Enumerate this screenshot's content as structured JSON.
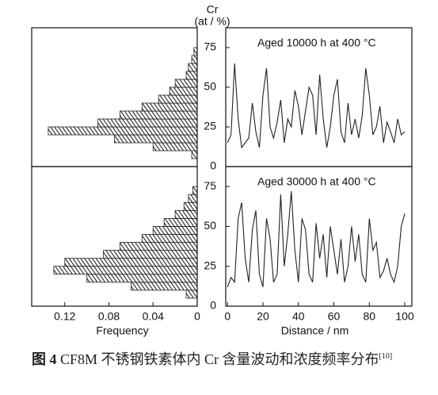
{
  "chart_data": [
    {
      "type": "histogram",
      "orientation": "horizontal",
      "color": "#222",
      "bins": [
        0,
        5,
        10,
        15,
        20,
        25,
        30,
        35,
        40,
        45,
        50,
        55,
        60,
        65,
        70,
        75,
        80
      ],
      "values": [
        0,
        0.005,
        0.04,
        0.075,
        0.135,
        0.09,
        0.07,
        0.05,
        0.035,
        0.025,
        0.02,
        0.01,
        0.008,
        0.005,
        0.003,
        0
      ],
      "xlim": [
        0.15,
        0
      ],
      "ylim": [
        0,
        87.5
      ]
    },
    {
      "type": "line",
      "title": "Aged 10000 h  at 400 °C",
      "ylabel": "Cr",
      "yunit": "(at / %)",
      "color": "#222",
      "x": [
        0,
        2,
        4,
        6,
        8,
        10,
        12,
        14,
        16,
        18,
        20,
        22,
        24,
        26,
        28,
        30,
        32,
        34,
        36,
        38,
        40,
        42,
        44,
        46,
        48,
        50,
        52,
        54,
        56,
        58,
        60,
        62,
        64,
        66,
        68,
        70,
        72,
        74,
        76,
        78,
        80,
        82,
        84,
        86,
        88,
        90,
        92,
        94,
        96,
        98,
        100
      ],
      "values": [
        15,
        20,
        65,
        30,
        12,
        15,
        18,
        40,
        22,
        12,
        45,
        62,
        25,
        18,
        28,
        42,
        15,
        30,
        25,
        48,
        38,
        20,
        35,
        50,
        45,
        20,
        58,
        30,
        12,
        25,
        45,
        55,
        22,
        15,
        40,
        20,
        30,
        18,
        32,
        62,
        45,
        20,
        25,
        38,
        15,
        28,
        22,
        15,
        30,
        20,
        22
      ],
      "xlim": [
        -1,
        104
      ],
      "ylim": [
        0,
        87.5
      ],
      "yticks": [
        0,
        25,
        50,
        75
      ]
    },
    {
      "type": "histogram",
      "orientation": "horizontal",
      "color": "#222",
      "xlabel": "Frequency",
      "bins": [
        0,
        5,
        10,
        15,
        20,
        25,
        30,
        35,
        40,
        45,
        50,
        55,
        60,
        65,
        70,
        75,
        80
      ],
      "values": [
        0,
        0.01,
        0.06,
        0.1,
        0.13,
        0.12,
        0.085,
        0.07,
        0.05,
        0.04,
        0.03,
        0.02,
        0.012,
        0.008,
        0.004,
        0
      ],
      "xlim": [
        0.15,
        0
      ],
      "ylim": [
        0,
        87.5
      ],
      "xticks": [
        0.12,
        0.08,
        0.04,
        0
      ]
    },
    {
      "type": "line",
      "title": "Aged 30000 h  at 400 °C",
      "xlabel": "Distance / nm",
      "color": "#222",
      "x": [
        0,
        2,
        4,
        6,
        8,
        10,
        12,
        14,
        16,
        18,
        20,
        22,
        24,
        26,
        28,
        30,
        32,
        34,
        36,
        38,
        40,
        42,
        44,
        46,
        48,
        50,
        52,
        54,
        56,
        58,
        60,
        62,
        64,
        66,
        68,
        70,
        72,
        74,
        76,
        78,
        80,
        82,
        84,
        86,
        88,
        90,
        92,
        94,
        96,
        98,
        100
      ],
      "values": [
        12,
        18,
        15,
        55,
        65,
        30,
        15,
        48,
        60,
        20,
        12,
        55,
        42,
        15,
        20,
        70,
        25,
        45,
        72,
        35,
        15,
        55,
        48,
        20,
        15,
        52,
        30,
        45,
        18,
        50,
        35,
        20,
        42,
        15,
        25,
        50,
        28,
        45,
        20,
        15,
        55,
        35,
        40,
        18,
        22,
        30,
        20,
        15,
        25,
        50,
        58
      ],
      "xlim": [
        -1,
        104
      ],
      "ylim": [
        0,
        87.5
      ],
      "yticks": [
        0,
        25,
        50,
        75
      ],
      "xticks": [
        0,
        20,
        40,
        60,
        80,
        100
      ]
    }
  ],
  "caption": {
    "label": "图 4",
    "text": "CF8M 不锈钢铁素体内 Cr 含量波动和浓度频率分布",
    "ref": "[10]"
  }
}
